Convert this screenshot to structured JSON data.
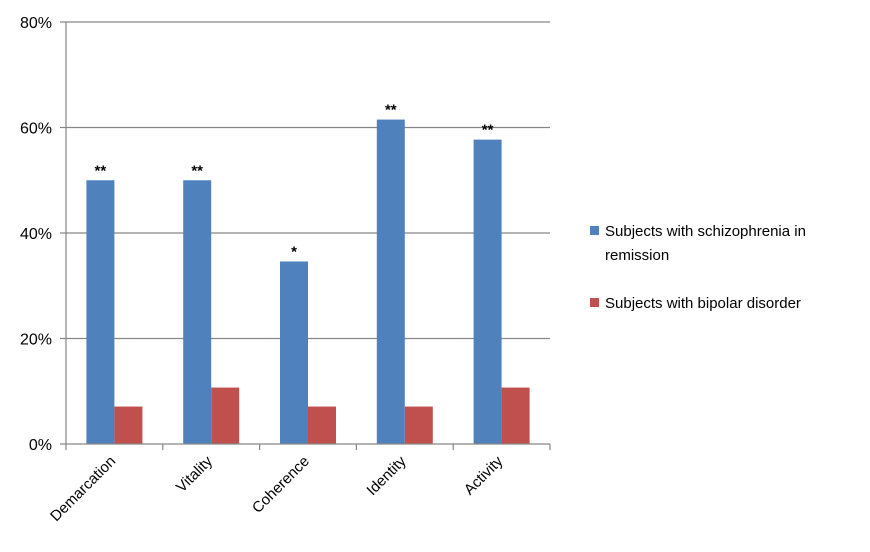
{
  "chart_data": {
    "type": "bar",
    "categories": [
      "Demarcation",
      "Vitality",
      "Coherence",
      "Identity",
      "Activity"
    ],
    "series": [
      {
        "name": "Subjects with schizophrenia in remission",
        "color": "#4f81bd",
        "values": [
          50,
          50,
          34.6,
          61.5,
          57.7
        ],
        "annotations": [
          "**",
          "**",
          "*",
          "**",
          "**"
        ]
      },
      {
        "name": "Subjects with bipolar disorder",
        "color": "#c0504d",
        "values": [
          7.1,
          10.7,
          7.1,
          7.1,
          10.7
        ]
      }
    ],
    "ylim": [
      0,
      80
    ],
    "yticks": [
      0,
      20,
      40,
      60,
      80
    ],
    "ytick_labels": [
      "0%",
      "20%",
      "40%",
      "60%",
      "80%"
    ],
    "grid": true,
    "legend_position": "right"
  }
}
